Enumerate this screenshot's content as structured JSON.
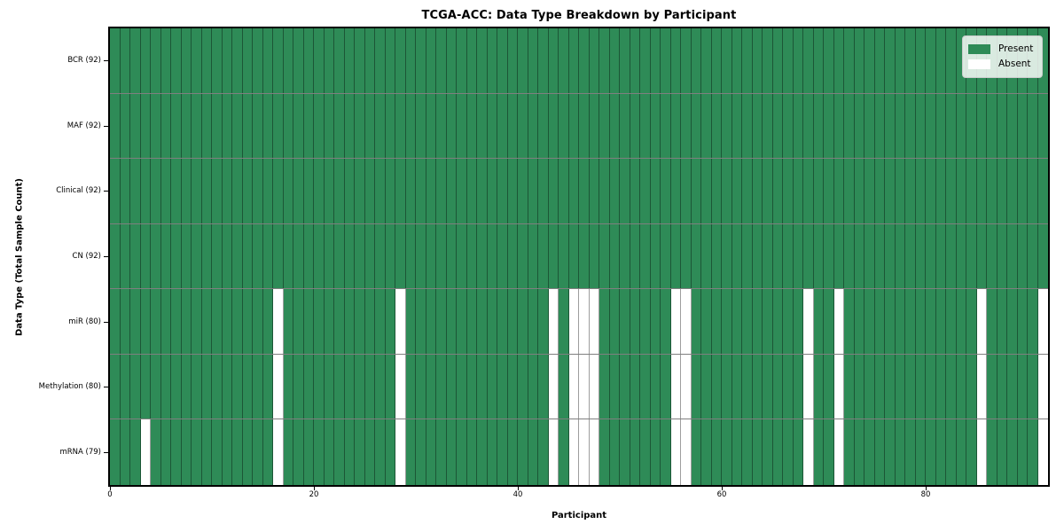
{
  "chart_data": {
    "type": "heatmap",
    "title": "TCGA-ACC: Data Type Breakdown by Participant",
    "xlabel": "Participant",
    "ylabel": "Data Type (Total Sample Count)",
    "n_participants": 92,
    "x_ticks": [
      0,
      20,
      40,
      60,
      80
    ],
    "x_range": [
      0,
      92
    ],
    "grid": "cell-edges",
    "legend_position": "upper-right",
    "colors": {
      "present": "#2e8b57",
      "absent": "#ffffff"
    },
    "legend": [
      {
        "label": "Present",
        "color": "#2e8b57"
      },
      {
        "label": "Absent",
        "color": "#ffffff"
      }
    ],
    "rows": [
      {
        "label": "BCR (92)",
        "data_type": "BCR",
        "present_count": 92,
        "absent_participants": []
      },
      {
        "label": "MAF (92)",
        "data_type": "MAF",
        "present_count": 92,
        "absent_participants": []
      },
      {
        "label": "Clinical (92)",
        "data_type": "Clinical",
        "present_count": 92,
        "absent_participants": []
      },
      {
        "label": "CN (92)",
        "data_type": "CN",
        "present_count": 92,
        "absent_participants": []
      },
      {
        "label": "miR (80)",
        "data_type": "miR",
        "present_count": 80,
        "absent_participants": [
          16,
          28,
          43,
          45,
          46,
          47,
          55,
          56,
          68,
          71,
          85,
          91
        ]
      },
      {
        "label": "Methylation (80)",
        "data_type": "Methylation",
        "present_count": 80,
        "absent_participants": [
          16,
          28,
          43,
          45,
          46,
          47,
          55,
          56,
          68,
          71,
          85,
          91
        ]
      },
      {
        "label": "mRNA (79)",
        "data_type": "mRNA",
        "present_count": 79,
        "absent_participants": [
          3,
          16,
          28,
          43,
          45,
          46,
          47,
          55,
          56,
          68,
          71,
          85,
          91
        ]
      }
    ]
  }
}
